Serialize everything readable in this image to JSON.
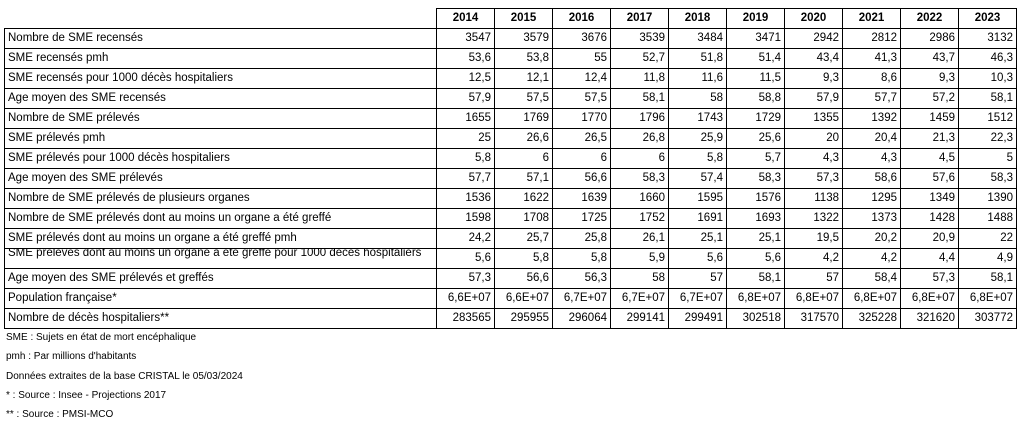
{
  "table": {
    "years": [
      "2014",
      "2015",
      "2016",
      "2017",
      "2018",
      "2019",
      "2020",
      "2021",
      "2022",
      "2023"
    ],
    "rows": [
      {
        "label": "Nombre de SME recensés",
        "values": [
          "3547",
          "3579",
          "3676",
          "3539",
          "3484",
          "3471",
          "2942",
          "2812",
          "2986",
          "3132"
        ]
      },
      {
        "label": "SME recensés pmh",
        "values": [
          "53,6",
          "53,8",
          "55",
          "52,7",
          "51,8",
          "51,4",
          "43,4",
          "41,3",
          "43,7",
          "46,3"
        ]
      },
      {
        "label": "SME recensés pour 1000 décès hospitaliers",
        "values": [
          "12,5",
          "12,1",
          "12,4",
          "11,8",
          "11,6",
          "11,5",
          "9,3",
          "8,6",
          "9,3",
          "10,3"
        ]
      },
      {
        "label": "Age moyen des SME recensés",
        "values": [
          "57,9",
          "57,5",
          "57,5",
          "58,1",
          "58",
          "58,8",
          "57,9",
          "57,7",
          "57,2",
          "58,1"
        ]
      },
      {
        "label": "Nombre de SME prélevés",
        "values": [
          "1655",
          "1769",
          "1770",
          "1796",
          "1743",
          "1729",
          "1355",
          "1392",
          "1459",
          "1512"
        ]
      },
      {
        "label": "SME prélevés pmh",
        "values": [
          "25",
          "26,6",
          "26,5",
          "26,8",
          "25,9",
          "25,6",
          "20",
          "20,4",
          "21,3",
          "22,3"
        ]
      },
      {
        "label": "SME prélevés pour 1000 décès hospitaliers",
        "values": [
          "5,8",
          "6",
          "6",
          "6",
          "5,8",
          "5,7",
          "4,3",
          "4,3",
          "4,5",
          "5"
        ]
      },
      {
        "label": "Age moyen des SME prélevés",
        "values": [
          "57,7",
          "57,1",
          "56,6",
          "58,3",
          "57,4",
          "58,3",
          "57,3",
          "58,6",
          "57,6",
          "58,3"
        ]
      },
      {
        "label": "Nombre de SME prélevés de plusieurs organes",
        "values": [
          "1536",
          "1622",
          "1639",
          "1660",
          "1595",
          "1576",
          "1138",
          "1295",
          "1349",
          "1390"
        ]
      },
      {
        "label": "Nombre de SME prélevés dont au moins un organe a été greffé",
        "values": [
          "1598",
          "1708",
          "1725",
          "1752",
          "1691",
          "1693",
          "1322",
          "1373",
          "1428",
          "1488"
        ]
      },
      {
        "label": "SME prélevés dont au moins un organe a été greffé pmh",
        "values": [
          "24,2",
          "25,7",
          "25,8",
          "26,1",
          "25,1",
          "25,1",
          "19,5",
          "20,2",
          "20,9",
          "22"
        ]
      },
      {
        "label": "SME prélevés dont au moins un organe a été greffé pour 1000 décès hospitaliers",
        "values": [
          "5,6",
          "5,8",
          "5,8",
          "5,9",
          "5,6",
          "5,6",
          "4,2",
          "4,2",
          "4,4",
          "4,9"
        ]
      },
      {
        "label": "Age moyen des SME prélevés et greffés",
        "values": [
          "57,3",
          "56,6",
          "56,3",
          "58",
          "57",
          "58,1",
          "57",
          "58,4",
          "57,3",
          "58,1"
        ]
      },
      {
        "label": "Population française*",
        "values": [
          "6,6E+07",
          "6,6E+07",
          "6,7E+07",
          "6,7E+07",
          "6,7E+07",
          "6,8E+07",
          "6,8E+07",
          "6,8E+07",
          "6,8E+07",
          "6,8E+07"
        ]
      },
      {
        "label": "Nombre de décès hospitaliers**",
        "values": [
          "283565",
          "295955",
          "296064",
          "299141",
          "299491",
          "302518",
          "317570",
          "325228",
          "321620",
          "303772"
        ]
      }
    ]
  },
  "notes": [
    "SME : Sujets en état de mort encéphalique",
    "pmh : Par millions d'habitants",
    "Données extraites de la base CRISTAL le 05/03/2024",
    "* : Source : Insee - Projections 2017",
    "** : Source : PMSI-MCO"
  ]
}
